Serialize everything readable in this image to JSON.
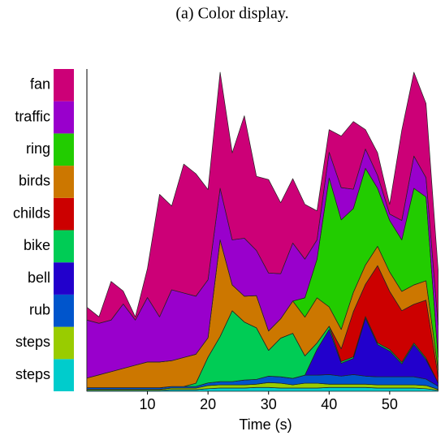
{
  "chart_data": {
    "type": "stacked_area",
    "title": "(a) Color display.",
    "x_label": "Time (s)",
    "x": [
      0,
      2,
      4,
      6,
      8,
      10,
      12,
      14,
      16,
      18,
      20,
      22,
      24,
      26,
      28,
      30,
      32,
      34,
      36,
      38,
      40,
      42,
      44,
      46,
      48,
      50,
      52,
      54,
      56,
      58
    ],
    "xlim": [
      0,
      59
    ],
    "xticks": [
      10,
      20,
      30,
      40,
      50
    ],
    "ylim": [
      0,
      100
    ],
    "series": [
      {
        "name": "steps",
        "color": "#00cccc",
        "values": [
          0.3,
          0.3,
          0.3,
          0.3,
          0.3,
          0.3,
          0.3,
          0.5,
          0.5,
          0.5,
          0.8,
          1,
          1,
          1,
          1.2,
          1.2,
          1,
          1,
          1,
          1,
          1.2,
          1.2,
          1.2,
          1.2,
          1,
          1,
          1,
          1,
          0.8,
          0.3
        ]
      },
      {
        "name": "steps",
        "color": "#99cc00",
        "values": [
          0.3,
          0.3,
          0.3,
          0.3,
          0.3,
          0.3,
          0.3,
          0.5,
          0.5,
          0.5,
          1,
          1,
          1,
          1,
          1,
          1.5,
          1.5,
          1,
          1.5,
          1.5,
          1,
          1,
          1,
          1,
          1,
          1,
          1,
          1,
          1,
          0.3
        ]
      },
      {
        "name": "rub",
        "color": "#0055cc",
        "values": [
          0.5,
          0.5,
          0.5,
          0.5,
          0.5,
          0.5,
          0.5,
          0.5,
          0.5,
          0.5,
          0.8,
          1,
          1,
          1.5,
          1.5,
          2,
          2,
          2,
          2.5,
          2.5,
          3,
          2.5,
          3,
          2.5,
          2.5,
          2.5,
          2.5,
          2.5,
          2,
          1
        ]
      },
      {
        "name": "bell",
        "color": "#2200cc",
        "values": [
          0,
          0,
          0,
          0,
          0,
          0,
          0,
          0,
          0,
          0,
          0,
          0,
          0,
          0,
          0,
          0,
          0,
          0,
          0,
          8,
          14,
          4,
          5,
          18,
          10,
          8,
          4,
          10,
          6,
          1
        ]
      },
      {
        "name": "bike",
        "color": "#00cc55",
        "values": [
          0,
          0,
          0,
          0,
          0,
          0,
          0,
          0,
          0,
          1,
          8,
          14,
          22,
          18,
          16,
          8,
          12,
          14,
          6,
          2,
          1,
          0.5,
          0.5,
          0.5,
          0.5,
          0.5,
          0.5,
          0.5,
          0.5,
          0
        ]
      },
      {
        "name": "childs",
        "color": "#cc0000",
        "values": [
          0,
          0,
          0,
          0,
          0,
          0,
          0,
          0,
          0,
          0,
          0,
          0,
          0,
          0,
          0,
          0,
          0,
          0,
          0,
          0,
          0,
          4,
          14,
          10,
          24,
          18,
          16,
          12,
          18,
          2
        ]
      },
      {
        "name": "birds",
        "color": "#cc7700",
        "values": [
          3,
          4,
          5,
          6,
          7,
          8,
          8,
          8,
          9,
          9,
          6,
          30,
          8,
          8,
          10,
          6,
          6,
          10,
          12,
          14,
          6,
          6,
          6,
          6,
          6,
          6,
          6,
          6,
          6,
          2
        ]
      },
      {
        "name": "ring",
        "color": "#22cc00",
        "values": [
          0,
          0,
          0,
          0,
          0,
          0,
          0,
          0,
          0,
          0,
          0,
          0,
          0,
          0,
          0,
          0,
          0,
          0,
          6,
          12,
          40,
          34,
          26,
          30,
          18,
          16,
          16,
          30,
          26,
          4
        ]
      },
      {
        "name": "traffic",
        "color": "#9900cc",
        "values": [
          18,
          16,
          16,
          20,
          14,
          20,
          14,
          22,
          20,
          18,
          18,
          16,
          14,
          18,
          14,
          18,
          14,
          18,
          12,
          6,
          8,
          10,
          6,
          6,
          4,
          2,
          6,
          10,
          6,
          10
        ]
      },
      {
        "name": "fan",
        "color": "#cc0077",
        "values": [
          4,
          2,
          12,
          4,
          1,
          9,
          38,
          26,
          40,
          38,
          28,
          36,
          27,
          38,
          23,
          29,
          22,
          20,
          17,
          9,
          7,
          16,
          21,
          6,
          7,
          3,
          28,
          26,
          23,
          17
        ]
      }
    ]
  }
}
